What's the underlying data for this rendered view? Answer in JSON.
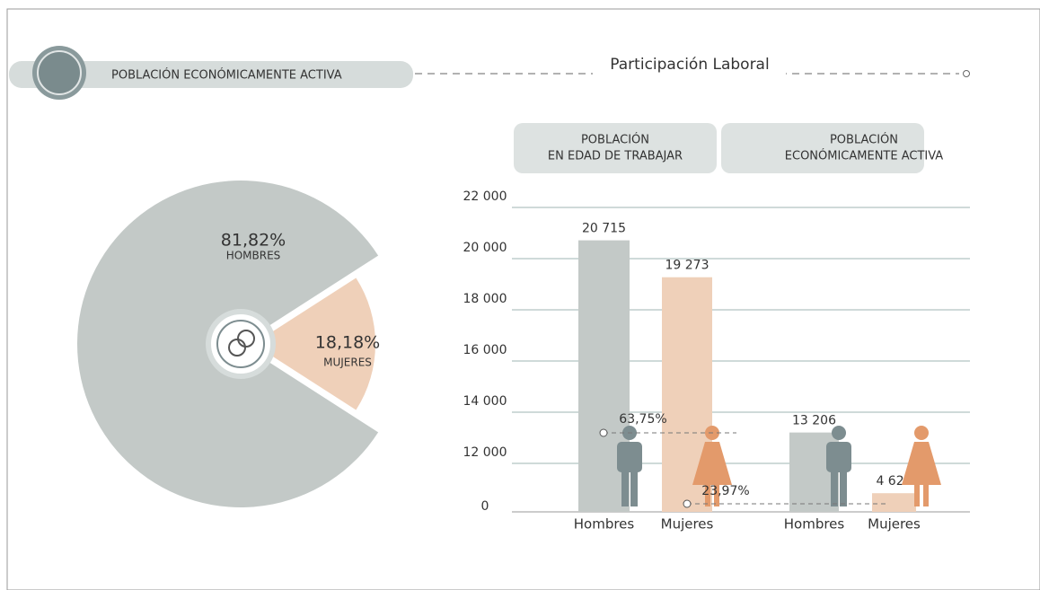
{
  "header": {
    "badge": "POBLACIÓN ECONÓMICAMENTE ACTIVA",
    "title": "Participación Laboral"
  },
  "chart_data": [
    {
      "type": "pie",
      "categories": [
        "HOMBRES",
        "MUJERES"
      ],
      "values": [
        81.82,
        18.18
      ],
      "value_labels": [
        "81,82%",
        "18,18%"
      ],
      "colors": [
        "#c3c9c7",
        "#efd0b9"
      ]
    },
    {
      "type": "bar",
      "groups": [
        {
          "label": [
            "POBLACIÓN",
            "EN EDAD DE TRABAJAR"
          ],
          "categories": [
            "Hombres",
            "Mujeres"
          ],
          "values": [
            20715,
            19273
          ],
          "value_labels": [
            "20 715",
            "19 273"
          ]
        },
        {
          "label": [
            "POBLACIÓN",
            "ECONÓMICAMENTE ACTIVA"
          ],
          "categories": [
            "Hombres",
            "Mujeres"
          ],
          "values": [
            13206,
            4620
          ],
          "value_labels": [
            "13 206",
            "4 620"
          ]
        }
      ],
      "colors": [
        "#c3c9c7",
        "#efd0b9"
      ],
      "yticks": [
        0,
        {
          "value": 12000,
          "label": "12 000"
        },
        {
          "value": 14000,
          "label": "14 000"
        },
        {
          "value": 16000,
          "label": "16 000"
        },
        {
          "value": 18000,
          "label": "18 000"
        },
        {
          "value": 20000,
          "label": "20 000"
        },
        {
          "value": 22000,
          "label": "22 000"
        }
      ],
      "grid": true,
      "annotations": [
        "63,75%",
        "23,97%"
      ]
    }
  ]
}
